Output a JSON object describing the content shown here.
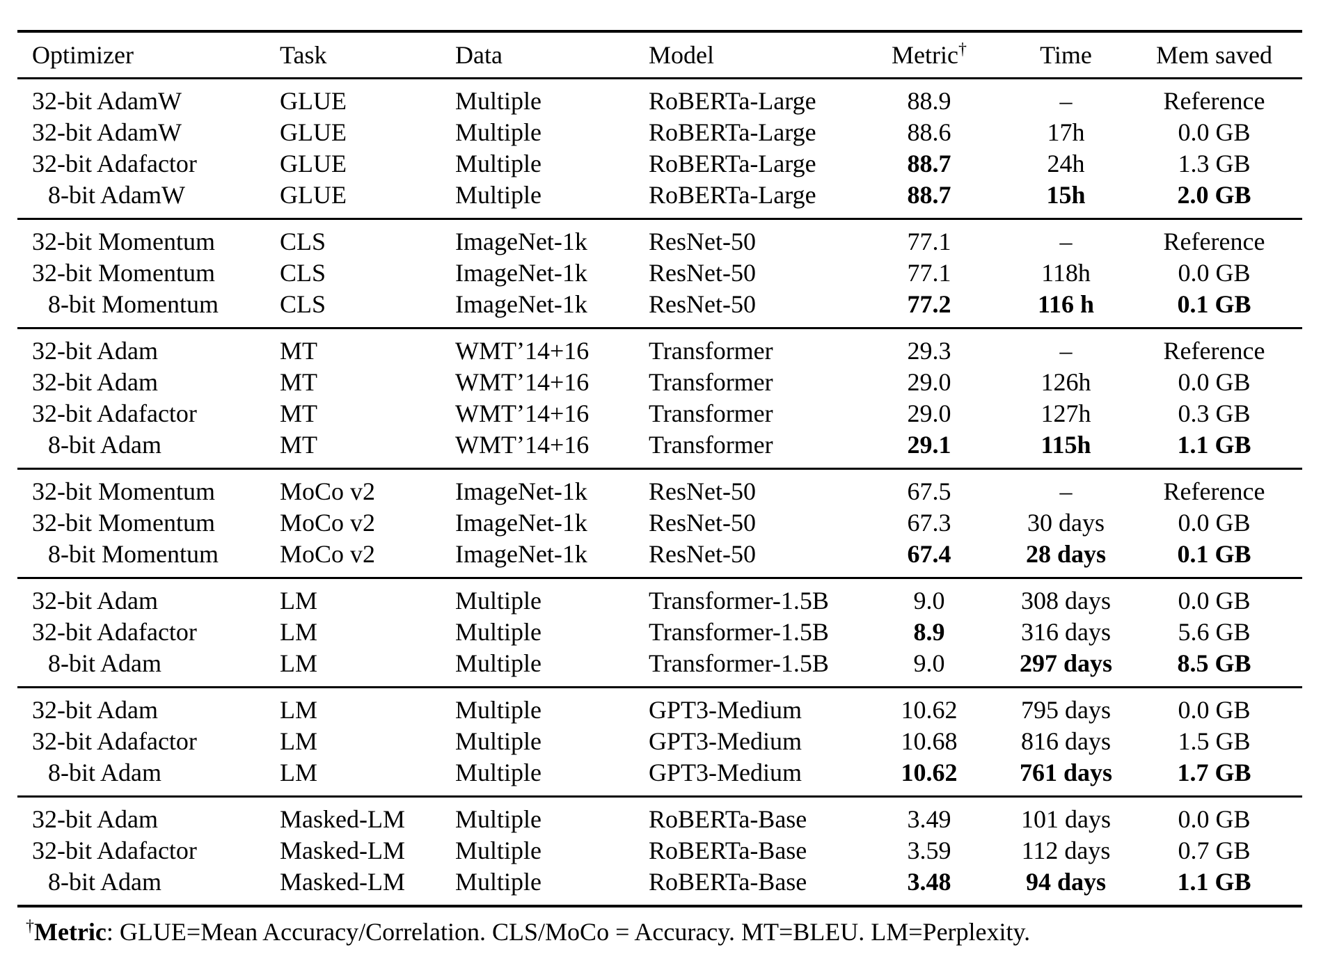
{
  "table": {
    "columns": [
      "Optimizer",
      "Task",
      "Data",
      "Model",
      "Metric",
      "Time",
      "Mem saved"
    ],
    "metric_dagger": "†",
    "groups": [
      {
        "rows": [
          {
            "indent": false,
            "bold": [],
            "cells": [
              "32-bit AdamW",
              "GLUE",
              "Multiple",
              "RoBERTa-Large",
              "88.9",
              "–",
              "Reference"
            ]
          },
          {
            "indent": false,
            "bold": [],
            "cells": [
              "32-bit AdamW",
              "GLUE",
              "Multiple",
              "RoBERTa-Large",
              "88.6",
              "17h",
              "0.0 GB"
            ]
          },
          {
            "indent": false,
            "bold": [
              4
            ],
            "cells": [
              "32-bit Adafactor",
              "GLUE",
              "Multiple",
              "RoBERTa-Large",
              "88.7",
              "24h",
              "1.3 GB"
            ]
          },
          {
            "indent": true,
            "bold": [
              4,
              5,
              6
            ],
            "cells": [
              "8-bit AdamW",
              "GLUE",
              "Multiple",
              "RoBERTa-Large",
              "88.7",
              "15h",
              "2.0 GB"
            ]
          }
        ]
      },
      {
        "rows": [
          {
            "indent": false,
            "bold": [],
            "cells": [
              "32-bit Momentum",
              "CLS",
              "ImageNet-1k",
              "ResNet-50",
              "77.1",
              "–",
              "Reference"
            ]
          },
          {
            "indent": false,
            "bold": [],
            "cells": [
              "32-bit Momentum",
              "CLS",
              "ImageNet-1k",
              "ResNet-50",
              "77.1",
              "118h",
              "0.0 GB"
            ]
          },
          {
            "indent": true,
            "bold": [
              4,
              5,
              6
            ],
            "cells": [
              "8-bit Momentum",
              "CLS",
              "ImageNet-1k",
              "ResNet-50",
              "77.2",
              "116 h",
              "0.1 GB"
            ]
          }
        ]
      },
      {
        "rows": [
          {
            "indent": false,
            "bold": [],
            "cells": [
              "32-bit Adam",
              "MT",
              "WMT’14+16",
              "Transformer",
              "29.3",
              "–",
              "Reference"
            ]
          },
          {
            "indent": false,
            "bold": [],
            "cells": [
              "32-bit Adam",
              "MT",
              "WMT’14+16",
              "Transformer",
              "29.0",
              "126h",
              "0.0 GB"
            ]
          },
          {
            "indent": false,
            "bold": [],
            "cells": [
              "32-bit Adafactor",
              "MT",
              "WMT’14+16",
              "Transformer",
              "29.0",
              "127h",
              "0.3 GB"
            ]
          },
          {
            "indent": true,
            "bold": [
              4,
              5,
              6
            ],
            "cells": [
              "8-bit Adam",
              "MT",
              "WMT’14+16",
              "Transformer",
              "29.1",
              "115h",
              "1.1 GB"
            ]
          }
        ]
      },
      {
        "rows": [
          {
            "indent": false,
            "bold": [],
            "cells": [
              "32-bit Momentum",
              "MoCo v2",
              "ImageNet-1k",
              "ResNet-50",
              "67.5",
              "–",
              "Reference"
            ]
          },
          {
            "indent": false,
            "bold": [],
            "cells": [
              "32-bit Momentum",
              "MoCo v2",
              "ImageNet-1k",
              "ResNet-50",
              "67.3",
              "30 days",
              "0.0 GB"
            ]
          },
          {
            "indent": true,
            "bold": [
              4,
              5,
              6
            ],
            "cells": [
              "8-bit Momentum",
              "MoCo v2",
              "ImageNet-1k",
              "ResNet-50",
              "67.4",
              "28 days",
              "0.1 GB"
            ]
          }
        ]
      },
      {
        "rows": [
          {
            "indent": false,
            "bold": [],
            "cells": [
              "32-bit Adam",
              "LM",
              "Multiple",
              "Transformer-1.5B",
              "9.0",
              "308 days",
              "0.0 GB"
            ]
          },
          {
            "indent": false,
            "bold": [
              4
            ],
            "cells": [
              "32-bit Adafactor",
              "LM",
              "Multiple",
              "Transformer-1.5B",
              "8.9",
              "316 days",
              "5.6 GB"
            ]
          },
          {
            "indent": true,
            "bold": [
              5,
              6
            ],
            "cells": [
              "8-bit Adam",
              "LM",
              "Multiple",
              "Transformer-1.5B",
              "9.0",
              "297 days",
              "8.5 GB"
            ]
          }
        ]
      },
      {
        "rows": [
          {
            "indent": false,
            "bold": [],
            "cells": [
              "32-bit Adam",
              "LM",
              "Multiple",
              "GPT3-Medium",
              "10.62",
              "795 days",
              "0.0 GB"
            ]
          },
          {
            "indent": false,
            "bold": [],
            "cells": [
              "32-bit Adafactor",
              "LM",
              "Multiple",
              "GPT3-Medium",
              "10.68",
              "816 days",
              "1.5 GB"
            ]
          },
          {
            "indent": true,
            "bold": [
              4,
              5,
              6
            ],
            "cells": [
              "8-bit Adam",
              "LM",
              "Multiple",
              "GPT3-Medium",
              "10.62",
              "761 days",
              "1.7 GB"
            ]
          }
        ]
      },
      {
        "rows": [
          {
            "indent": false,
            "bold": [],
            "cells": [
              "32-bit Adam",
              "Masked-LM",
              "Multiple",
              "RoBERTa-Base",
              "3.49",
              "101 days",
              "0.0 GB"
            ]
          },
          {
            "indent": false,
            "bold": [],
            "cells": [
              "32-bit Adafactor",
              "Masked-LM",
              "Multiple",
              "RoBERTa-Base",
              "3.59",
              "112 days",
              "0.7 GB"
            ]
          },
          {
            "indent": true,
            "bold": [
              4,
              5,
              6
            ],
            "cells": [
              "8-bit Adam",
              "Masked-LM",
              "Multiple",
              "RoBERTa-Base",
              "3.48",
              "94 days",
              "1.1 GB"
            ]
          }
        ]
      }
    ]
  },
  "footnote": {
    "dagger": "†",
    "label": "Metric",
    "text": ": GLUE=Mean Accuracy/Correlation. CLS/MoCo = Accuracy. MT=BLEU. LM=Perplexity."
  }
}
